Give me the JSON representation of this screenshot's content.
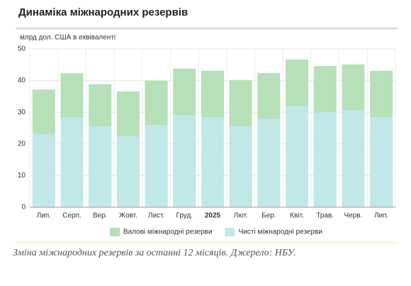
{
  "chart_data": {
    "type": "overlap_bar",
    "title": "Динаміка міжнародних резервів",
    "subtitle": "млрд дол. США в еквіваленті",
    "caption": "Зміна міжнародних резервів за останні 12 місяців. Джерело: НБУ.",
    "categories": [
      "Лип.",
      "Серп.",
      "Вер.",
      "Жовт.",
      "Лист.",
      "Груд.",
      "2025",
      "Лют.",
      "Бер.",
      "Квіт.",
      "Трав.",
      "Черв.",
      "Лип."
    ],
    "series": [
      {
        "name": "Валові міжнародні резерви",
        "color": "#b6e0b8",
        "values": [
          37.2,
          42.3,
          38.9,
          36.6,
          40.0,
          43.8,
          43.1,
          40.2,
          42.4,
          46.7,
          44.6,
          45.1,
          43.1
        ]
      },
      {
        "name": "Чисті міжнародні резерви",
        "color": "#c1e8e8",
        "values": [
          23.2,
          28.4,
          25.6,
          22.4,
          26.0,
          29.1,
          28.4,
          25.7,
          27.9,
          32.0,
          30.0,
          30.7,
          28.4
        ]
      }
    ],
    "ylim": [
      0,
      50
    ],
    "yticks": [
      0,
      10,
      20,
      30,
      40,
      50
    ],
    "grid": true
  }
}
